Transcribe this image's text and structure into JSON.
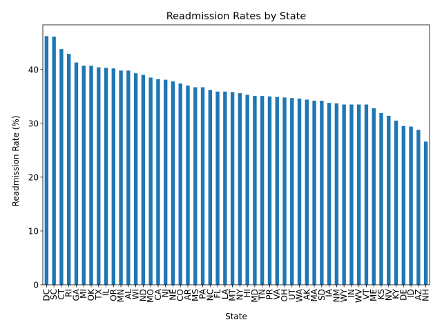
{
  "chart_data": {
    "type": "bar",
    "title": "Readmission Rates by State",
    "xlabel": "State",
    "ylabel": "Readmission Rate (%)",
    "ylim": [
      0,
      48.3
    ],
    "yticks": [
      0,
      10,
      20,
      30,
      40
    ],
    "grid": false,
    "legend": "none",
    "bar_color": "#1f77b4",
    "categories": [
      "DC",
      "SC",
      "CT",
      "RI",
      "GA",
      "MI",
      "OK",
      "TX",
      "IL",
      "OR",
      "MN",
      "AL",
      "WI",
      "ND",
      "MO",
      "CA",
      "NJ",
      "NE",
      "CO",
      "AR",
      "MS",
      "PA",
      "NC",
      "FL",
      "LA",
      "MT",
      "NY",
      "HI",
      "MD",
      "TN",
      "PR",
      "VA",
      "OH",
      "UT",
      "WA",
      "AK",
      "MA",
      "SD",
      "IA",
      "NM",
      "WY",
      "IN",
      "WV",
      "VT",
      "ME",
      "KS",
      "NV",
      "KY",
      "DE",
      "ID",
      "AZ",
      "NH"
    ],
    "values": [
      46.2,
      46.1,
      43.8,
      42.9,
      41.3,
      40.7,
      40.7,
      40.4,
      40.3,
      40.2,
      39.8,
      39.8,
      39.3,
      39.0,
      38.5,
      38.2,
      38.1,
      37.8,
      37.4,
      37.0,
      36.7,
      36.7,
      36.2,
      35.9,
      35.9,
      35.8,
      35.6,
      35.3,
      35.1,
      35.1,
      35.0,
      34.9,
      34.8,
      34.7,
      34.6,
      34.4,
      34.2,
      34.2,
      33.8,
      33.7,
      33.5,
      33.5,
      33.5,
      33.5,
      32.8,
      31.9,
      31.4,
      30.5,
      29.5,
      29.4,
      28.8,
      26.6
    ]
  }
}
